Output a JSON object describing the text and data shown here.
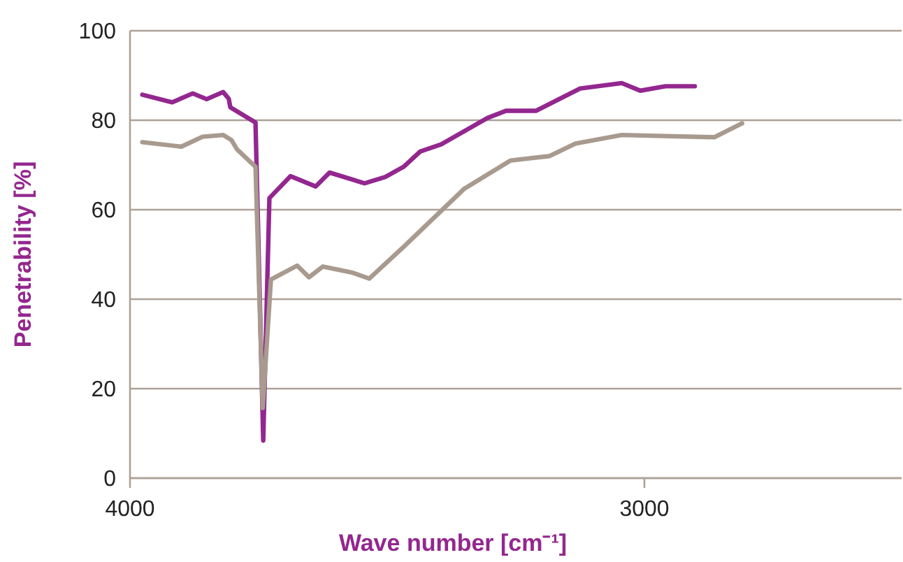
{
  "chart_data": {
    "type": "line",
    "xlabel": "Wave number [cm⁻¹]",
    "ylabel": "Penetrability [%]",
    "xlim": [
      4000,
      2500
    ],
    "xticks": [
      4000,
      3000
    ],
    "ylim": [
      0,
      100
    ],
    "yticks": [
      0,
      20,
      40,
      60,
      80,
      100
    ],
    "grid": "y",
    "series": [
      {
        "color": "#93278f",
        "x": [
          3976,
          3918,
          3878,
          3851,
          3819,
          3808,
          3805,
          3756,
          3741,
          3729,
          3688,
          3639,
          3612,
          3544,
          3504,
          3468,
          3436,
          3395,
          3305,
          3269,
          3211,
          3125,
          3044,
          3008,
          2959,
          2902
        ],
        "values": [
          85.7,
          84.0,
          86.0,
          84.7,
          86.3,
          84.8,
          82.9,
          79.5,
          8.4,
          62.6,
          67.5,
          65.2,
          68.3,
          65.9,
          67.3,
          69.6,
          73.0,
          74.6,
          80.5,
          82.1,
          82.1,
          87.1,
          88.3,
          86.6,
          87.6,
          87.6
        ]
      },
      {
        "color": "#a89a8e",
        "x": [
          3976,
          3900,
          3859,
          3819,
          3803,
          3792,
          3756,
          3742,
          3726,
          3675,
          3652,
          3625,
          3567,
          3535,
          3468,
          3350,
          3260,
          3184,
          3134,
          3044,
          2864,
          2810
        ],
        "values": [
          75.1,
          74.1,
          76.3,
          76.7,
          75.6,
          73.5,
          69.6,
          15.7,
          44.4,
          47.5,
          44.9,
          47.3,
          45.9,
          44.6,
          51.7,
          64.7,
          71.0,
          72.0,
          74.8,
          76.7,
          76.2,
          79.3
        ]
      }
    ]
  }
}
